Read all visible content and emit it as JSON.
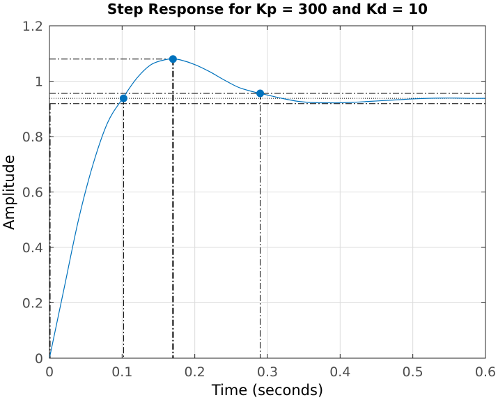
{
  "chart_data": {
    "type": "line",
    "title": "Step Response for Kp = 300 and Kd = 10",
    "xlabel": "Time (seconds)",
    "ylabel": "Amplitude",
    "xlim": [
      0,
      0.6
    ],
    "ylim": [
      0,
      1.2
    ],
    "grid": true,
    "x_ticks": [
      "0",
      "0.1",
      "0.2",
      "0.3",
      "0.4",
      "0.5",
      "0.6"
    ],
    "y_ticks": [
      "0",
      "0.2",
      "0.4",
      "0.6",
      "0.8",
      "1",
      "1.2"
    ],
    "colors": {
      "series": "#0072bd",
      "reference": "#000000",
      "grid": "#dcdcdc"
    },
    "series": [
      {
        "x": [
          0,
          0.02,
          0.04,
          0.06,
          0.08,
          0.1,
          0.12,
          0.14,
          0.16,
          0.17,
          0.18,
          0.2,
          0.22,
          0.24,
          0.26,
          0.28,
          0.29,
          0.3,
          0.32,
          0.34,
          0.36,
          0.38,
          0.4,
          0.42,
          0.44,
          0.46,
          0.48,
          0.5,
          0.52,
          0.54,
          0.56,
          0.58,
          0.6
        ],
        "y": [
          0,
          0.25,
          0.5,
          0.7,
          0.85,
          0.935,
          1.01,
          1.06,
          1.078,
          1.08,
          1.077,
          1.06,
          1.035,
          1.005,
          0.978,
          0.962,
          0.956,
          0.95,
          0.938,
          0.928,
          0.923,
          0.922,
          0.922,
          0.924,
          0.927,
          0.93,
          0.933,
          0.936,
          0.938,
          0.939,
          0.939,
          0.938,
          0.938
        ]
      }
    ],
    "markers": [
      {
        "x": 0.102,
        "y": 0.938
      },
      {
        "x": 0.17,
        "y": 1.08
      },
      {
        "x": 0.29,
        "y": 0.956
      }
    ],
    "settling_band": {
      "upper": 0.956,
      "lower": 0.919
    },
    "steady_state": 0.938
  }
}
